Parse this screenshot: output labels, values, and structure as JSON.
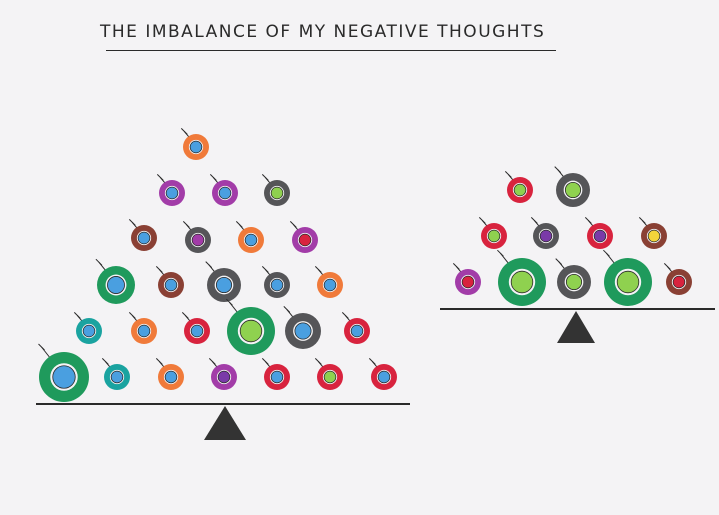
{
  "title": "THE IMBALANCE OF MY NEGATIVE THOUGHTS",
  "colors": {
    "ink": "#2a2a2a",
    "green": "#1f9a5c",
    "lightgreen": "#8fd14f",
    "blue": "#4a9fe0",
    "orange": "#f07a3a",
    "purple": "#a23ca8",
    "red": "#d8233e",
    "gray": "#555558",
    "teal": "#1aa3a0",
    "brown": "#8a4034",
    "yellow": "#f2d43a",
    "violet": "#7a3aa8"
  }
}
